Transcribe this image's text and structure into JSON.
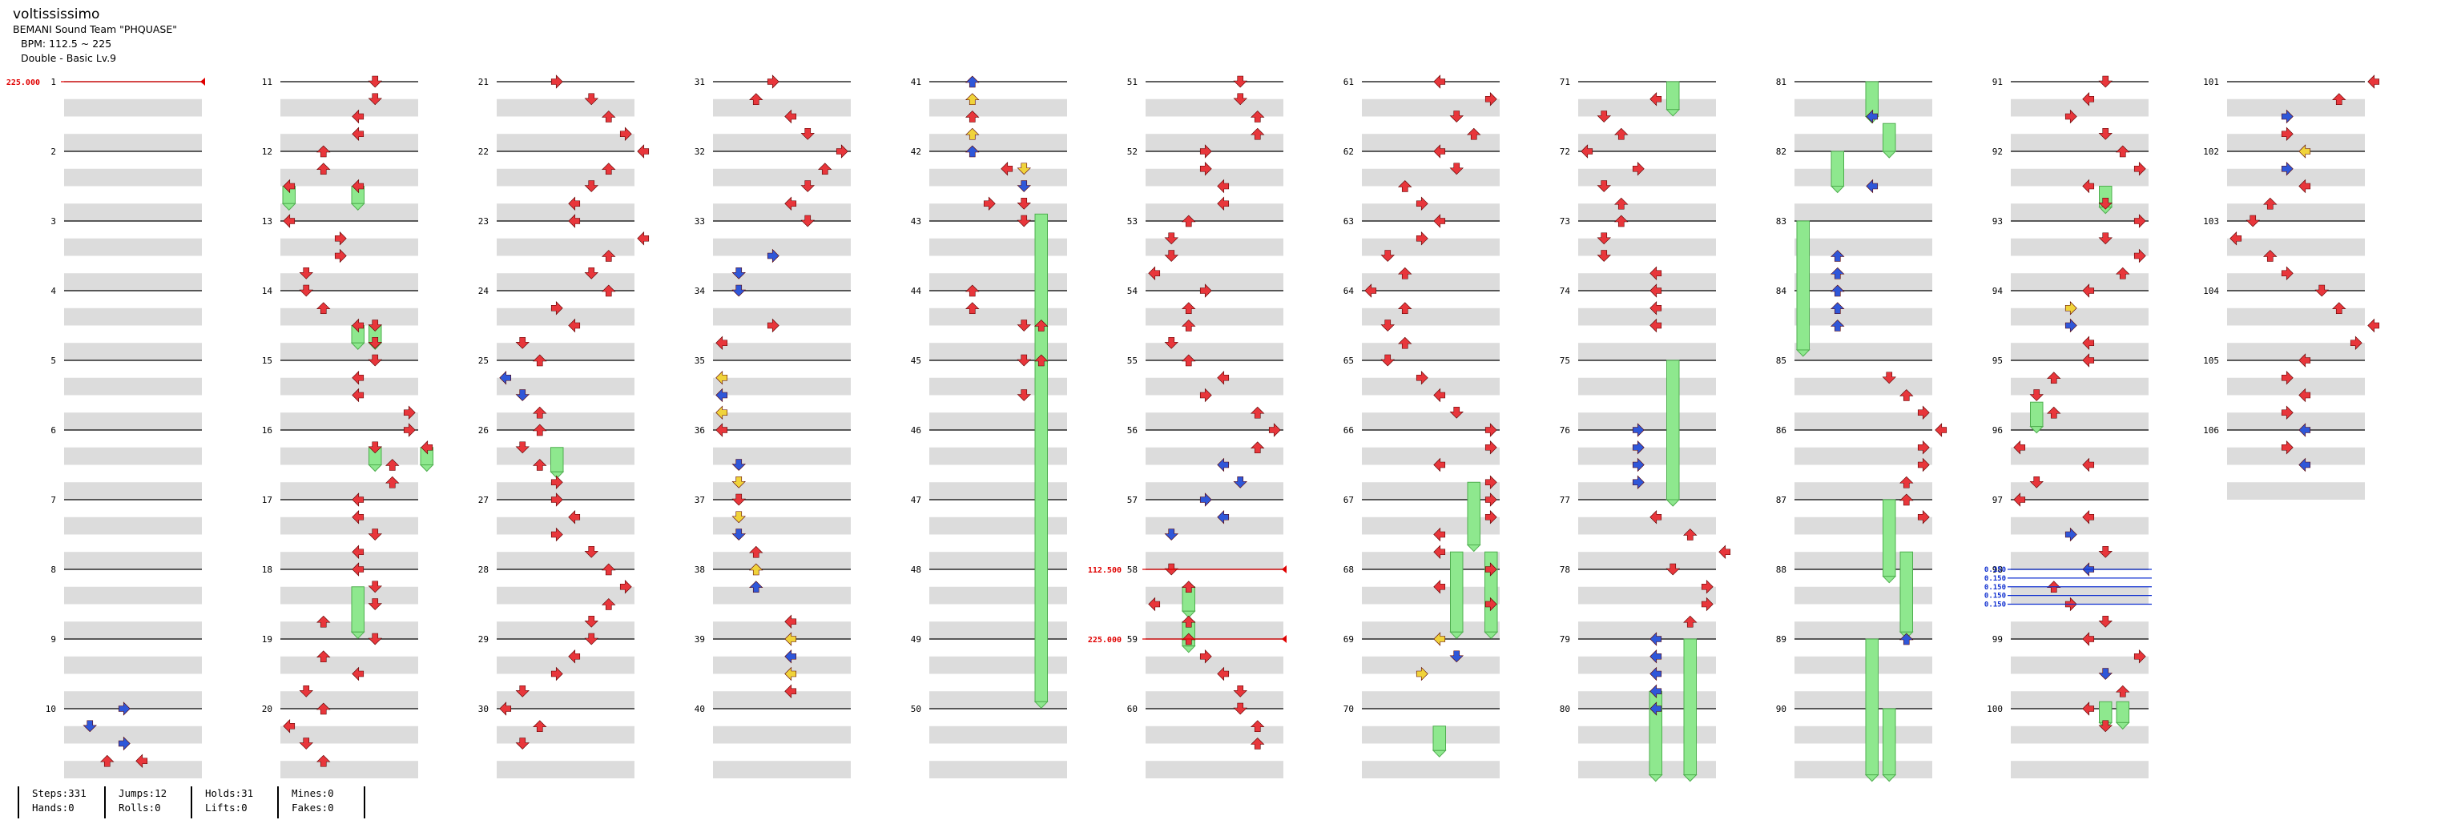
{
  "song": {
    "title": "voltississimo",
    "artist": "BEMANI Sound Team \"PHQUASE\"",
    "bpm": "BPM: 112.5 ~ 225",
    "difficulty": "Double - Basic Lv.9"
  },
  "stats": {
    "steps": "Steps:331",
    "hands": "Hands:0",
    "jumps": "Jumps:12",
    "rolls": "Rolls:0",
    "holds": "Holds:31",
    "lifts": "Lifts:0",
    "mines": "Mines:0",
    "fakes": "Fakes:0"
  },
  "colors": {
    "quarter": "#e8363b",
    "eighth": "#2f57d9",
    "sixteenth": "#f0d33a",
    "hold": "#8ee88e",
    "bpm": "#e00000",
    "stop": "#1030d0",
    "stripe": "#dcdcdc"
  },
  "bpm_changes": [
    {
      "measure": 1,
      "bpm": "225.000"
    },
    {
      "measure": 58,
      "bpm": "112.500"
    },
    {
      "measure": 59,
      "bpm": "225.000"
    }
  ],
  "stops": [
    {
      "measure": 98,
      "label": "0.150"
    },
    {
      "measure": 98.125,
      "label": "0.150"
    },
    {
      "measure": 98.25,
      "label": "0.150"
    },
    {
      "measure": 98.375,
      "label": "0.150"
    },
    {
      "measure": 98.5,
      "label": "0.150"
    }
  ],
  "measure_count": 106,
  "notes": [
    [
      10.0,
      3,
      "eighth"
    ],
    [
      10.25,
      1,
      "eighth"
    ],
    [
      10.5,
      3,
      "eighth"
    ],
    [
      10.75,
      2,
      "quarter"
    ],
    [
      10.75,
      4,
      "quarter"
    ],
    [
      11.0,
      5,
      "quarter"
    ],
    [
      11.25,
      5,
      "quarter"
    ],
    [
      11.5,
      4,
      "quarter"
    ],
    [
      11.75,
      4,
      "quarter"
    ],
    [
      12.0,
      2,
      "quarter"
    ],
    [
      12.25,
      2,
      "quarter"
    ],
    [
      12.5,
      0,
      "quarter"
    ],
    [
      12.5,
      4,
      "quarter"
    ],
    [
      13.0,
      0,
      "quarter"
    ],
    [
      13.25,
      3,
      "quarter"
    ],
    [
      13.5,
      3,
      "quarter"
    ],
    [
      13.75,
      1,
      "quarter"
    ],
    [
      14.0,
      1,
      "quarter"
    ],
    [
      14.25,
      2,
      "quarter"
    ],
    [
      14.5,
      4,
      "quarter"
    ],
    [
      14.5,
      5,
      "quarter"
    ],
    [
      14.75,
      5,
      "quarter"
    ],
    [
      15.0,
      5,
      "quarter"
    ],
    [
      15.25,
      4,
      "quarter"
    ],
    [
      15.5,
      4,
      "quarter"
    ],
    [
      15.75,
      7,
      "quarter"
    ],
    [
      16.0,
      7,
      "quarter"
    ],
    [
      16.25,
      5,
      "quarter"
    ],
    [
      16.25,
      8,
      "quarter"
    ],
    [
      16.5,
      6,
      "quarter"
    ],
    [
      16.75,
      6,
      "quarter"
    ],
    [
      17.0,
      4,
      "quarter"
    ],
    [
      17.25,
      4,
      "quarter"
    ],
    [
      17.5,
      5,
      "quarter"
    ],
    [
      17.75,
      4,
      "quarter"
    ],
    [
      18.0,
      4,
      "quarter"
    ],
    [
      18.25,
      5,
      "quarter"
    ],
    [
      18.5,
      5,
      "quarter"
    ],
    [
      18.75,
      2,
      "quarter"
    ],
    [
      19.0,
      5,
      "quarter"
    ],
    [
      19.25,
      2,
      "quarter"
    ],
    [
      19.5,
      4,
      "quarter"
    ],
    [
      19.75,
      1,
      "quarter"
    ],
    [
      20.0,
      2,
      "quarter"
    ],
    [
      20.25,
      0,
      "quarter"
    ],
    [
      20.5,
      1,
      "quarter"
    ],
    [
      20.75,
      2,
      "quarter"
    ],
    [
      21.0,
      3,
      "quarter"
    ],
    [
      21.25,
      5,
      "quarter"
    ],
    [
      21.5,
      6,
      "quarter"
    ],
    [
      21.75,
      7,
      "quarter"
    ],
    [
      22.0,
      8,
      "quarter"
    ],
    [
      22.25,
      6,
      "quarter"
    ],
    [
      22.5,
      5,
      "quarter"
    ],
    [
      22.75,
      4,
      "quarter"
    ],
    [
      23.0,
      4,
      "quarter"
    ],
    [
      23.25,
      8,
      "quarter"
    ],
    [
      23.5,
      6,
      "quarter"
    ],
    [
      23.75,
      5,
      "quarter"
    ],
    [
      24.0,
      6,
      "quarter"
    ],
    [
      24.25,
      3,
      "quarter"
    ],
    [
      24.5,
      4,
      "quarter"
    ],
    [
      24.75,
      1,
      "quarter"
    ],
    [
      25.0,
      2,
      "quarter"
    ],
    [
      25.25,
      0,
      "eighth"
    ],
    [
      25.5,
      1,
      "eighth"
    ],
    [
      25.75,
      2,
      "quarter"
    ],
    [
      26.0,
      2,
      "quarter"
    ],
    [
      26.25,
      1,
      "quarter"
    ],
    [
      26.5,
      2,
      "quarter"
    ],
    [
      26.75,
      3,
      "quarter"
    ],
    [
      27.0,
      3,
      "quarter"
    ],
    [
      27.25,
      4,
      "quarter"
    ],
    [
      27.5,
      3,
      "quarter"
    ],
    [
      27.75,
      5,
      "quarter"
    ],
    [
      28.0,
      6,
      "quarter"
    ],
    [
      28.25,
      7,
      "quarter"
    ],
    [
      28.5,
      6,
      "quarter"
    ],
    [
      28.75,
      5,
      "quarter"
    ],
    [
      29.0,
      5,
      "quarter"
    ],
    [
      29.25,
      4,
      "quarter"
    ],
    [
      29.5,
      3,
      "quarter"
    ],
    [
      29.75,
      1,
      "quarter"
    ],
    [
      30.0,
      0,
      "quarter"
    ],
    [
      30.25,
      2,
      "quarter"
    ],
    [
      30.5,
      1,
      "quarter"
    ],
    [
      31.0,
      3,
      "quarter"
    ],
    [
      31.25,
      2,
      "quarter"
    ],
    [
      31.5,
      4,
      "quarter"
    ],
    [
      31.75,
      5,
      "quarter"
    ],
    [
      32.0,
      7,
      "quarter"
    ],
    [
      32.25,
      6,
      "quarter"
    ],
    [
      32.5,
      5,
      "quarter"
    ],
    [
      32.75,
      4,
      "quarter"
    ],
    [
      33.0,
      5,
      "quarter"
    ],
    [
      33.5,
      3,
      "eighth"
    ],
    [
      33.75,
      1,
      "eighth"
    ],
    [
      34.0,
      1,
      "eighth"
    ],
    [
      34.5,
      3,
      "quarter"
    ],
    [
      34.75,
      0,
      "quarter"
    ],
    [
      35.25,
      0,
      "sixteenth"
    ],
    [
      35.5,
      0,
      "eighth"
    ],
    [
      35.75,
      0,
      "sixteenth"
    ],
    [
      36.0,
      0,
      "quarter"
    ],
    [
      36.5,
      1,
      "eighth"
    ],
    [
      36.75,
      1,
      "sixteenth"
    ],
    [
      37.0,
      1,
      "quarter"
    ],
    [
      37.25,
      1,
      "sixteenth"
    ],
    [
      37.5,
      1,
      "eighth"
    ],
    [
      37.75,
      2,
      "quarter"
    ],
    [
      38.0,
      2,
      "sixteenth"
    ],
    [
      38.25,
      2,
      "eighth"
    ],
    [
      38.75,
      4,
      "quarter"
    ],
    [
      39.0,
      4,
      "sixteenth"
    ],
    [
      39.25,
      4,
      "eighth"
    ],
    [
      39.5,
      4,
      "sixteenth"
    ],
    [
      39.75,
      4,
      "quarter"
    ],
    [
      41.0,
      2,
      "eighth"
    ],
    [
      41.25,
      2,
      "sixteenth"
    ],
    [
      41.5,
      2,
      "quarter"
    ],
    [
      41.75,
      2,
      "sixteenth"
    ],
    [
      42.0,
      2,
      "eighth"
    ],
    [
      42.25,
      4,
      "quarter"
    ],
    [
      42.25,
      5,
      "sixteenth"
    ],
    [
      42.5,
      5,
      "eighth"
    ],
    [
      42.75,
      3,
      "quarter"
    ],
    [
      42.75,
      5,
      "quarter"
    ],
    [
      43.0,
      5,
      "quarter"
    ],
    [
      44.0,
      2,
      "quarter"
    ],
    [
      44.25,
      2,
      "quarter"
    ],
    [
      44.5,
      5,
      "quarter"
    ],
    [
      44.5,
      6,
      "quarter"
    ],
    [
      45.0,
      5,
      "quarter"
    ],
    [
      45.0,
      6,
      "quarter"
    ],
    [
      45.5,
      5,
      "quarter"
    ],
    [
      51.0,
      5,
      "quarter"
    ],
    [
      51.25,
      5,
      "quarter"
    ],
    [
      51.5,
      6,
      "quarter"
    ],
    [
      51.75,
      6,
      "quarter"
    ],
    [
      52.0,
      3,
      "quarter"
    ],
    [
      52.25,
      3,
      "quarter"
    ],
    [
      52.5,
      4,
      "quarter"
    ],
    [
      52.75,
      4,
      "quarter"
    ],
    [
      53.0,
      2,
      "quarter"
    ],
    [
      53.25,
      1,
      "quarter"
    ],
    [
      53.5,
      1,
      "quarter"
    ],
    [
      53.75,
      0,
      "quarter"
    ],
    [
      54.0,
      3,
      "quarter"
    ],
    [
      54.25,
      2,
      "quarter"
    ],
    [
      54.5,
      2,
      "quarter"
    ],
    [
      54.75,
      1,
      "quarter"
    ],
    [
      55.0,
      2,
      "quarter"
    ],
    [
      55.25,
      4,
      "quarter"
    ],
    [
      55.5,
      3,
      "quarter"
    ],
    [
      55.75,
      6,
      "quarter"
    ],
    [
      56.0,
      7,
      "quarter"
    ],
    [
      56.25,
      6,
      "quarter"
    ],
    [
      56.5,
      4,
      "eighth"
    ],
    [
      56.75,
      5,
      "eighth"
    ],
    [
      57.0,
      3,
      "eighth"
    ],
    [
      57.25,
      4,
      "eighth"
    ],
    [
      57.5,
      1,
      "eighth"
    ],
    [
      58.0,
      1,
      "quarter"
    ],
    [
      58.25,
      2,
      "quarter"
    ],
    [
      58.5,
      0,
      "quarter"
    ],
    [
      58.75,
      2,
      "quarter"
    ],
    [
      59.0,
      2,
      "quarter"
    ],
    [
      59.25,
      3,
      "quarter"
    ],
    [
      59.5,
      4,
      "quarter"
    ],
    [
      59.75,
      5,
      "quarter"
    ],
    [
      60.0,
      5,
      "quarter"
    ],
    [
      60.25,
      6,
      "quarter"
    ],
    [
      60.5,
      6,
      "quarter"
    ],
    [
      61.0,
      4,
      "quarter"
    ],
    [
      61.25,
      7,
      "quarter"
    ],
    [
      61.5,
      5,
      "quarter"
    ],
    [
      61.75,
      6,
      "quarter"
    ],
    [
      62.0,
      4,
      "quarter"
    ],
    [
      62.25,
      5,
      "quarter"
    ],
    [
      62.5,
      2,
      "quarter"
    ],
    [
      62.75,
      3,
      "quarter"
    ],
    [
      63.0,
      4,
      "quarter"
    ],
    [
      63.25,
      3,
      "quarter"
    ],
    [
      63.5,
      1,
      "quarter"
    ],
    [
      63.75,
      2,
      "quarter"
    ],
    [
      64.0,
      0,
      "quarter"
    ],
    [
      64.25,
      2,
      "quarter"
    ],
    [
      64.5,
      1,
      "quarter"
    ],
    [
      64.75,
      2,
      "quarter"
    ],
    [
      65.0,
      1,
      "quarter"
    ],
    [
      65.25,
      3,
      "quarter"
    ],
    [
      65.5,
      4,
      "quarter"
    ],
    [
      65.75,
      5,
      "quarter"
    ],
    [
      66.0,
      7,
      "quarter"
    ],
    [
      66.25,
      7,
      "quarter"
    ],
    [
      66.5,
      4,
      "quarter"
    ],
    [
      66.75,
      7,
      "quarter"
    ],
    [
      67.0,
      7,
      "quarter"
    ],
    [
      67.25,
      7,
      "quarter"
    ],
    [
      67.5,
      4,
      "quarter"
    ],
    [
      67.75,
      4,
      "quarter"
    ],
    [
      68.0,
      7,
      "quarter"
    ],
    [
      68.25,
      4,
      "quarter"
    ],
    [
      68.5,
      7,
      "quarter"
    ],
    [
      69.0,
      4,
      "sixteenth"
    ],
    [
      69.25,
      5,
      "eighth"
    ],
    [
      69.5,
      3,
      "sixteenth"
    ],
    [
      71.25,
      4,
      "quarter"
    ],
    [
      71.5,
      1,
      "quarter"
    ],
    [
      71.75,
      2,
      "quarter"
    ],
    [
      72.0,
      0,
      "quarter"
    ],
    [
      72.25,
      3,
      "quarter"
    ],
    [
      72.5,
      1,
      "quarter"
    ],
    [
      72.75,
      2,
      "quarter"
    ],
    [
      73.0,
      2,
      "quarter"
    ],
    [
      73.25,
      1,
      "quarter"
    ],
    [
      73.5,
      1,
      "quarter"
    ],
    [
      73.75,
      4,
      "quarter"
    ],
    [
      74.0,
      4,
      "quarter"
    ],
    [
      74.25,
      4,
      "quarter"
    ],
    [
      74.5,
      4,
      "quarter"
    ],
    [
      76.0,
      3,
      "eighth"
    ],
    [
      76.25,
      3,
      "eighth"
    ],
    [
      76.5,
      3,
      "eighth"
    ],
    [
      76.75,
      3,
      "eighth"
    ],
    [
      77.25,
      4,
      "quarter"
    ],
    [
      77.5,
      6,
      "quarter"
    ],
    [
      77.75,
      8,
      "quarter"
    ],
    [
      78.0,
      5,
      "quarter"
    ],
    [
      78.25,
      7,
      "quarter"
    ],
    [
      78.5,
      7,
      "quarter"
    ],
    [
      78.75,
      6,
      "quarter"
    ],
    [
      79.0,
      4,
      "eighth"
    ],
    [
      79.25,
      4,
      "eighth"
    ],
    [
      79.5,
      4,
      "eighth"
    ],
    [
      79.75,
      4,
      "eighth"
    ],
    [
      80.0,
      4,
      "eighth"
    ],
    [
      81.5,
      4,
      "eighth"
    ],
    [
      82.5,
      4,
      "eighth"
    ],
    [
      83.5,
      2,
      "eighth"
    ],
    [
      83.75,
      2,
      "eighth"
    ],
    [
      84.0,
      2,
      "eighth"
    ],
    [
      84.25,
      2,
      "eighth"
    ],
    [
      84.5,
      2,
      "eighth"
    ],
    [
      85.25,
      5,
      "quarter"
    ],
    [
      85.5,
      6,
      "quarter"
    ],
    [
      85.75,
      7,
      "quarter"
    ],
    [
      86.0,
      8,
      "quarter"
    ],
    [
      86.25,
      7,
      "quarter"
    ],
    [
      86.5,
      7,
      "quarter"
    ],
    [
      86.75,
      6,
      "quarter"
    ],
    [
      87.0,
      6,
      "quarter"
    ],
    [
      87.25,
      7,
      "quarter"
    ],
    [
      89.0,
      6,
      "eighth"
    ],
    [
      91.0,
      5,
      "quarter"
    ],
    [
      91.25,
      4,
      "quarter"
    ],
    [
      91.5,
      3,
      "quarter"
    ],
    [
      91.75,
      5,
      "quarter"
    ],
    [
      92.0,
      6,
      "quarter"
    ],
    [
      92.25,
      7,
      "quarter"
    ],
    [
      92.5,
      4,
      "quarter"
    ],
    [
      92.75,
      5,
      "quarter"
    ],
    [
      93.0,
      7,
      "quarter"
    ],
    [
      93.25,
      5,
      "quarter"
    ],
    [
      93.5,
      7,
      "quarter"
    ],
    [
      93.75,
      6,
      "quarter"
    ],
    [
      94.0,
      4,
      "quarter"
    ],
    [
      94.25,
      3,
      "sixteenth"
    ],
    [
      94.5,
      3,
      "eighth"
    ],
    [
      94.75,
      4,
      "quarter"
    ],
    [
      95.0,
      4,
      "quarter"
    ],
    [
      95.25,
      2,
      "quarter"
    ],
    [
      95.5,
      1,
      "quarter"
    ],
    [
      95.75,
      2,
      "quarter"
    ],
    [
      96.25,
      0,
      "quarter"
    ],
    [
      96.5,
      4,
      "quarter"
    ],
    [
      96.75,
      1,
      "quarter"
    ],
    [
      97.0,
      0,
      "quarter"
    ],
    [
      97.25,
      4,
      "quarter"
    ],
    [
      97.5,
      3,
      "eighth"
    ],
    [
      97.75,
      5,
      "quarter"
    ],
    [
      98.0,
      4,
      "eighth"
    ],
    [
      98.25,
      2,
      "quarter"
    ],
    [
      98.5,
      3,
      "quarter"
    ],
    [
      98.75,
      5,
      "quarter"
    ],
    [
      99.0,
      4,
      "quarter"
    ],
    [
      99.25,
      7,
      "quarter"
    ],
    [
      99.5,
      5,
      "eighth"
    ],
    [
      99.75,
      6,
      "quarter"
    ],
    [
      100.0,
      4,
      "quarter"
    ],
    [
      100.25,
      5,
      "quarter"
    ],
    [
      101.0,
      8,
      "quarter"
    ],
    [
      101.25,
      6,
      "quarter"
    ],
    [
      101.5,
      3,
      "eighth"
    ],
    [
      101.75,
      3,
      "quarter"
    ],
    [
      102.0,
      4,
      "sixteenth"
    ],
    [
      102.25,
      3,
      "eighth"
    ],
    [
      102.5,
      4,
      "quarter"
    ],
    [
      102.75,
      2,
      "quarter"
    ],
    [
      103.0,
      1,
      "quarter"
    ],
    [
      103.25,
      0,
      "quarter"
    ],
    [
      103.5,
      2,
      "quarter"
    ],
    [
      103.75,
      3,
      "quarter"
    ],
    [
      104.0,
      5,
      "quarter"
    ],
    [
      104.25,
      6,
      "quarter"
    ],
    [
      104.5,
      8,
      "quarter"
    ],
    [
      104.75,
      7,
      "quarter"
    ],
    [
      105.0,
      4,
      "quarter"
    ],
    [
      105.25,
      3,
      "quarter"
    ],
    [
      105.5,
      4,
      "quarter"
    ],
    [
      105.75,
      3,
      "quarter"
    ],
    [
      106.0,
      4,
      "eighth"
    ],
    [
      106.25,
      3,
      "quarter"
    ],
    [
      106.5,
      4,
      "eighth"
    ]
  ],
  "holds": [
    [
      12.5,
      12.75,
      0
    ],
    [
      12.5,
      12.75,
      4
    ],
    [
      14.5,
      14.75,
      4
    ],
    [
      14.5,
      14.75,
      5
    ],
    [
      16.25,
      16.5,
      5
    ],
    [
      16.25,
      16.5,
      8
    ],
    [
      18.25,
      18.9,
      4
    ],
    [
      26.25,
      26.6,
      3
    ],
    [
      42.9,
      49.9,
      6
    ],
    [
      58.25,
      58.6,
      2
    ],
    [
      58.75,
      59.1,
      2
    ],
    [
      66.75,
      67.65,
      6
    ],
    [
      67.75,
      68.9,
      5
    ],
    [
      67.75,
      68.9,
      7
    ],
    [
      70.25,
      70.6,
      4
    ],
    [
      71.0,
      71.4,
      5
    ],
    [
      75.0,
      77.0,
      5
    ],
    [
      79.0,
      80.95,
      6
    ],
    [
      79.75,
      80.95,
      4
    ],
    [
      81.0,
      81.5,
      4
    ],
    [
      81.6,
      82.0,
      5
    ],
    [
      82.0,
      82.5,
      2
    ],
    [
      83.0,
      84.85,
      0
    ],
    [
      87.0,
      88.1,
      5
    ],
    [
      87.75,
      88.9,
      6
    ],
    [
      89.0,
      90.95,
      4
    ],
    [
      90.0,
      90.95,
      5
    ],
    [
      92.5,
      92.8,
      5
    ],
    [
      95.6,
      95.95,
      1
    ],
    [
      99.9,
      100.2,
      5
    ],
    [
      99.9,
      100.2,
      6
    ]
  ]
}
